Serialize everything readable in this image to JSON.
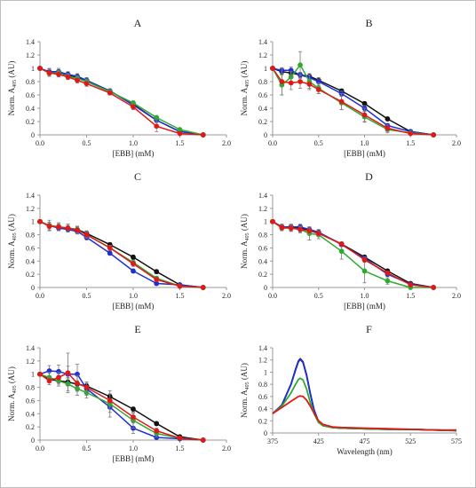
{
  "colors": {
    "black": "#111111",
    "blue": "#1f2fd6",
    "green": "#2eaa2e",
    "red": "#e01818",
    "axis": "#9a9a9a",
    "errorbar": "#7a7a7a"
  },
  "chart_data": [
    {
      "id": "A",
      "type": "line",
      "title": "A",
      "ylabel_main": "Norm. A",
      "ylabel_sub": "405",
      "ylabel_unit": " (AU)",
      "xlabel": "[EBB]  (mM)",
      "xlim": [
        0,
        2
      ],
      "ylim": [
        0,
        1.4
      ],
      "xticks": [
        "0.0",
        "0.5",
        "1.0",
        "1.5",
        "2.0"
      ],
      "yticks": [
        "0",
        "0.2",
        "0.4",
        "0.6",
        "0.8",
        "1",
        "1.2",
        "1.4"
      ],
      "x": [
        0,
        0.1,
        0.2,
        0.3,
        0.4,
        0.5,
        0.75,
        1.0,
        1.25,
        1.5,
        1.75
      ],
      "series": [
        {
          "color": "black",
          "values": [
            1,
            0.94,
            0.94,
            0.9,
            0.86,
            0.82,
            0.66,
            0.46,
            0.22,
            0.05,
            0
          ],
          "err": [
            0,
            0.05,
            0.04,
            0.04,
            0.04,
            0.04,
            0.03,
            0.03,
            0.03,
            0.02,
            0
          ]
        },
        {
          "color": "blue",
          "values": [
            1,
            0.95,
            0.95,
            0.91,
            0.88,
            0.82,
            0.66,
            0.45,
            0.22,
            0.05,
            0
          ],
          "err": [
            0,
            0.05,
            0.05,
            0.04,
            0.04,
            0.04,
            0.03,
            0.03,
            0.03,
            0.02,
            0
          ]
        },
        {
          "color": "green",
          "values": [
            1,
            0.93,
            0.93,
            0.88,
            0.85,
            0.8,
            0.65,
            0.48,
            0.26,
            0.08,
            0
          ],
          "err": [
            0,
            0.05,
            0.04,
            0.04,
            0.04,
            0.04,
            0.03,
            0.03,
            0.03,
            0.02,
            0
          ]
        },
        {
          "color": "red",
          "values": [
            1,
            0.93,
            0.91,
            0.87,
            0.82,
            0.77,
            0.63,
            0.42,
            0.13,
            0.02,
            0
          ],
          "err": [
            0,
            0.05,
            0.04,
            0.04,
            0.04,
            0.04,
            0.03,
            0.04,
            0.08,
            0.02,
            0
          ]
        }
      ]
    },
    {
      "id": "B",
      "type": "line",
      "title": "B",
      "ylabel_main": "Norm. A",
      "ylabel_sub": "405",
      "ylabel_unit": " (AU)",
      "xlabel": "[EBB]  (mM)",
      "xlim": [
        0,
        2
      ],
      "ylim": [
        0,
        1.4
      ],
      "xticks": [
        "0.0",
        "0.5",
        "1.0",
        "1.5",
        "2.0"
      ],
      "yticks": [
        "0",
        "0.2",
        "0.4",
        "0.6",
        "0.8",
        "1",
        "1.2",
        "1.4"
      ],
      "x": [
        0,
        0.1,
        0.2,
        0.3,
        0.4,
        0.5,
        0.75,
        1.0,
        1.25,
        1.5,
        1.75
      ],
      "series": [
        {
          "color": "black",
          "values": [
            1,
            0.95,
            0.93,
            0.9,
            0.88,
            0.82,
            0.66,
            0.47,
            0.24,
            0.05,
            0
          ],
          "err": [
            0,
            0.04,
            0.04,
            0.04,
            0.04,
            0.04,
            0.03,
            0.03,
            0.03,
            0.02,
            0
          ]
        },
        {
          "color": "blue",
          "values": [
            1,
            0.97,
            0.97,
            0.9,
            0.86,
            0.8,
            0.62,
            0.4,
            0.14,
            0.05,
            0
          ],
          "err": [
            0,
            0.04,
            0.05,
            0.04,
            0.04,
            0.04,
            0.04,
            0.04,
            0.03,
            0.02,
            0
          ]
        },
        {
          "color": "green",
          "values": [
            1,
            0.75,
            0.87,
            1.05,
            0.8,
            0.7,
            0.48,
            0.27,
            0.08,
            0.03,
            0
          ],
          "err": [
            0,
            0.15,
            0.08,
            0.2,
            0.1,
            0.08,
            0.1,
            0.08,
            0.05,
            0.02,
            0
          ]
        },
        {
          "color": "red",
          "values": [
            1,
            0.8,
            0.78,
            0.8,
            0.76,
            0.68,
            0.5,
            0.3,
            0.1,
            0.02,
            0
          ],
          "err": [
            0,
            0.2,
            0.1,
            0.1,
            0.08,
            0.06,
            0.12,
            0.1,
            0.05,
            0.02,
            0
          ]
        }
      ]
    },
    {
      "id": "C",
      "type": "line",
      "title": "C",
      "ylabel_main": "Norm. A",
      "ylabel_sub": "405",
      "ylabel_unit": " (AU)",
      "xlabel": "[EBB]  (mM)",
      "xlim": [
        0,
        2
      ],
      "ylim": [
        0,
        1.4
      ],
      "xticks": [
        "0.0",
        "0.5",
        "1.0",
        "1.5",
        "2.0"
      ],
      "yticks": [
        "0",
        "0.2",
        "0.4",
        "0.6",
        "0.8",
        "1",
        "1.2",
        "1.4"
      ],
      "x": [
        0,
        0.1,
        0.2,
        0.3,
        0.4,
        0.5,
        0.75,
        1.0,
        1.25,
        1.5,
        1.75
      ],
      "series": [
        {
          "color": "black",
          "values": [
            1,
            0.94,
            0.92,
            0.9,
            0.88,
            0.82,
            0.65,
            0.46,
            0.24,
            0.04,
            0
          ],
          "err": [
            0,
            0.05,
            0.04,
            0.04,
            0.04,
            0.04,
            0.03,
            0.03,
            0.03,
            0.02,
            0
          ]
        },
        {
          "color": "blue",
          "values": [
            1,
            0.94,
            0.9,
            0.88,
            0.85,
            0.76,
            0.52,
            0.25,
            0.06,
            0.04,
            0
          ],
          "err": [
            0,
            0.05,
            0.04,
            0.04,
            0.04,
            0.04,
            0.03,
            0.03,
            0.02,
            0.02,
            0
          ]
        },
        {
          "color": "green",
          "values": [
            1,
            0.94,
            0.92,
            0.9,
            0.88,
            0.8,
            0.6,
            0.38,
            0.14,
            0.02,
            0
          ],
          "err": [
            0,
            0.08,
            0.06,
            0.06,
            0.05,
            0.05,
            0.04,
            0.04,
            0.03,
            0.02,
            0
          ]
        },
        {
          "color": "red",
          "values": [
            1,
            0.93,
            0.92,
            0.9,
            0.87,
            0.8,
            0.6,
            0.36,
            0.12,
            0.02,
            0
          ],
          "err": [
            0,
            0.06,
            0.06,
            0.06,
            0.05,
            0.04,
            0.04,
            0.04,
            0.03,
            0.02,
            0
          ]
        }
      ]
    },
    {
      "id": "D",
      "type": "line",
      "title": "D",
      "ylabel_main": "Norm. A",
      "ylabel_sub": "405",
      "ylabel_unit": " (AU)",
      "xlabel": "[EBB]  (mM)",
      "xlim": [
        0,
        2
      ],
      "ylim": [
        0,
        1.4
      ],
      "xticks": [
        "0.0",
        "0.5",
        "1.0",
        "1.5",
        "2.0"
      ],
      "yticks": [
        "0",
        "0.2",
        "0.4",
        "0.6",
        "0.8",
        "1",
        "1.2",
        "1.4"
      ],
      "x": [
        0,
        0.1,
        0.2,
        0.3,
        0.4,
        0.5,
        0.75,
        1.0,
        1.25,
        1.5,
        1.75
      ],
      "series": [
        {
          "color": "black",
          "values": [
            1,
            0.92,
            0.92,
            0.9,
            0.87,
            0.83,
            0.66,
            0.46,
            0.25,
            0.06,
            0
          ],
          "err": [
            0,
            0.04,
            0.04,
            0.04,
            0.04,
            0.04,
            0.03,
            0.03,
            0.03,
            0.02,
            0
          ]
        },
        {
          "color": "blue",
          "values": [
            1,
            0.92,
            0.92,
            0.92,
            0.88,
            0.84,
            0.65,
            0.44,
            0.2,
            0.05,
            0
          ],
          "err": [
            0,
            0.04,
            0.04,
            0.04,
            0.04,
            0.04,
            0.03,
            0.03,
            0.03,
            0.02,
            0
          ]
        },
        {
          "color": "green",
          "values": [
            1,
            0.9,
            0.9,
            0.88,
            0.82,
            0.8,
            0.55,
            0.25,
            0.1,
            0.0,
            0
          ],
          "err": [
            0,
            0.04,
            0.05,
            0.05,
            0.1,
            0.06,
            0.12,
            0.18,
            0.05,
            0.02,
            0
          ]
        },
        {
          "color": "red",
          "values": [
            1,
            0.91,
            0.9,
            0.88,
            0.86,
            0.82,
            0.66,
            0.42,
            0.22,
            0.04,
            0
          ],
          "err": [
            0,
            0.04,
            0.04,
            0.04,
            0.04,
            0.04,
            0.03,
            0.04,
            0.03,
            0.02,
            0
          ]
        }
      ]
    },
    {
      "id": "E",
      "type": "line",
      "title": "E",
      "ylabel_main": "Norm. A",
      "ylabel_sub": "405",
      "ylabel_unit": " (AU)",
      "xlabel": "[EBB]  (mM)",
      "xlim": [
        0,
        2
      ],
      "ylim": [
        0,
        1.4
      ],
      "xticks": [
        "0.0",
        "0.5",
        "1.0",
        "1.5",
        "2.0"
      ],
      "yticks": [
        "0",
        "0.2",
        "0.4",
        "0.6",
        "0.8",
        "1",
        "1.2",
        "1.4"
      ],
      "x": [
        0,
        0.1,
        0.2,
        0.3,
        0.4,
        0.5,
        0.75,
        1.0,
        1.25,
        1.5,
        1.75
      ],
      "series": [
        {
          "color": "black",
          "values": [
            1,
            0.92,
            0.9,
            0.88,
            0.85,
            0.82,
            0.66,
            0.47,
            0.25,
            0.05,
            0
          ],
          "err": [
            0,
            0.05,
            0.05,
            0.05,
            0.05,
            0.04,
            0.04,
            0.03,
            0.03,
            0.02,
            0
          ]
        },
        {
          "color": "blue",
          "values": [
            1,
            1.05,
            1.04,
            1.0,
            1.0,
            0.78,
            0.5,
            0.18,
            0.04,
            0.02,
            0
          ],
          "err": [
            0,
            0.08,
            0.1,
            0.12,
            0.15,
            0.1,
            0.08,
            0.08,
            0.02,
            0.02,
            0
          ]
        },
        {
          "color": "green",
          "values": [
            1,
            0.95,
            0.9,
            0.85,
            0.78,
            0.72,
            0.55,
            0.3,
            0.1,
            0.03,
            0
          ],
          "err": [
            0,
            0.08,
            0.08,
            0.1,
            0.1,
            0.08,
            0.2,
            0.12,
            0.05,
            0.02,
            0
          ]
        },
        {
          "color": "red",
          "values": [
            1,
            0.9,
            0.95,
            1.02,
            0.86,
            0.8,
            0.6,
            0.35,
            0.14,
            0.03,
            0
          ],
          "err": [
            0,
            0.06,
            0.08,
            0.3,
            0.12,
            0.08,
            0.1,
            0.06,
            0.04,
            0.02,
            0
          ]
        }
      ]
    },
    {
      "id": "F",
      "type": "line",
      "title": "F",
      "ylabel_main": "Norm. A",
      "ylabel_sub": "405",
      "ylabel_unit": " (AU)",
      "xlabel": "Wavelength  (nm)",
      "xlim": [
        375,
        575
      ],
      "ylim": [
        0,
        1.4
      ],
      "xticks": [
        "375",
        "425",
        "475",
        "525",
        "575"
      ],
      "yticks": [
        "0",
        "0.2",
        "0.4",
        "0.6",
        "0.8",
        "1",
        "1.2",
        "1.4"
      ],
      "x": [
        375,
        385,
        395,
        400,
        403,
        405,
        408,
        412,
        416,
        420,
        425,
        430,
        440,
        450,
        475,
        500,
        525,
        550,
        575
      ],
      "series": [
        {
          "color": "black",
          "values": [
            0.32,
            0.46,
            0.8,
            1.05,
            1.18,
            1.22,
            1.17,
            0.95,
            0.65,
            0.38,
            0.18,
            0.12,
            0.09,
            0.08,
            0.07,
            0.06,
            0.06,
            0.05,
            0.04
          ]
        },
        {
          "color": "blue",
          "values": [
            0.32,
            0.46,
            0.8,
            1.04,
            1.17,
            1.21,
            1.16,
            0.94,
            0.64,
            0.38,
            0.18,
            0.12,
            0.09,
            0.08,
            0.07,
            0.06,
            0.06,
            0.05,
            0.04
          ]
        },
        {
          "color": "green",
          "values": [
            0.32,
            0.44,
            0.66,
            0.8,
            0.88,
            0.9,
            0.87,
            0.72,
            0.5,
            0.32,
            0.17,
            0.12,
            0.09,
            0.08,
            0.07,
            0.06,
            0.06,
            0.05,
            0.04
          ]
        },
        {
          "color": "red",
          "values": [
            0.32,
            0.42,
            0.52,
            0.57,
            0.6,
            0.61,
            0.6,
            0.54,
            0.44,
            0.33,
            0.2,
            0.14,
            0.1,
            0.09,
            0.08,
            0.07,
            0.06,
            0.05,
            0.05
          ]
        }
      ]
    }
  ]
}
